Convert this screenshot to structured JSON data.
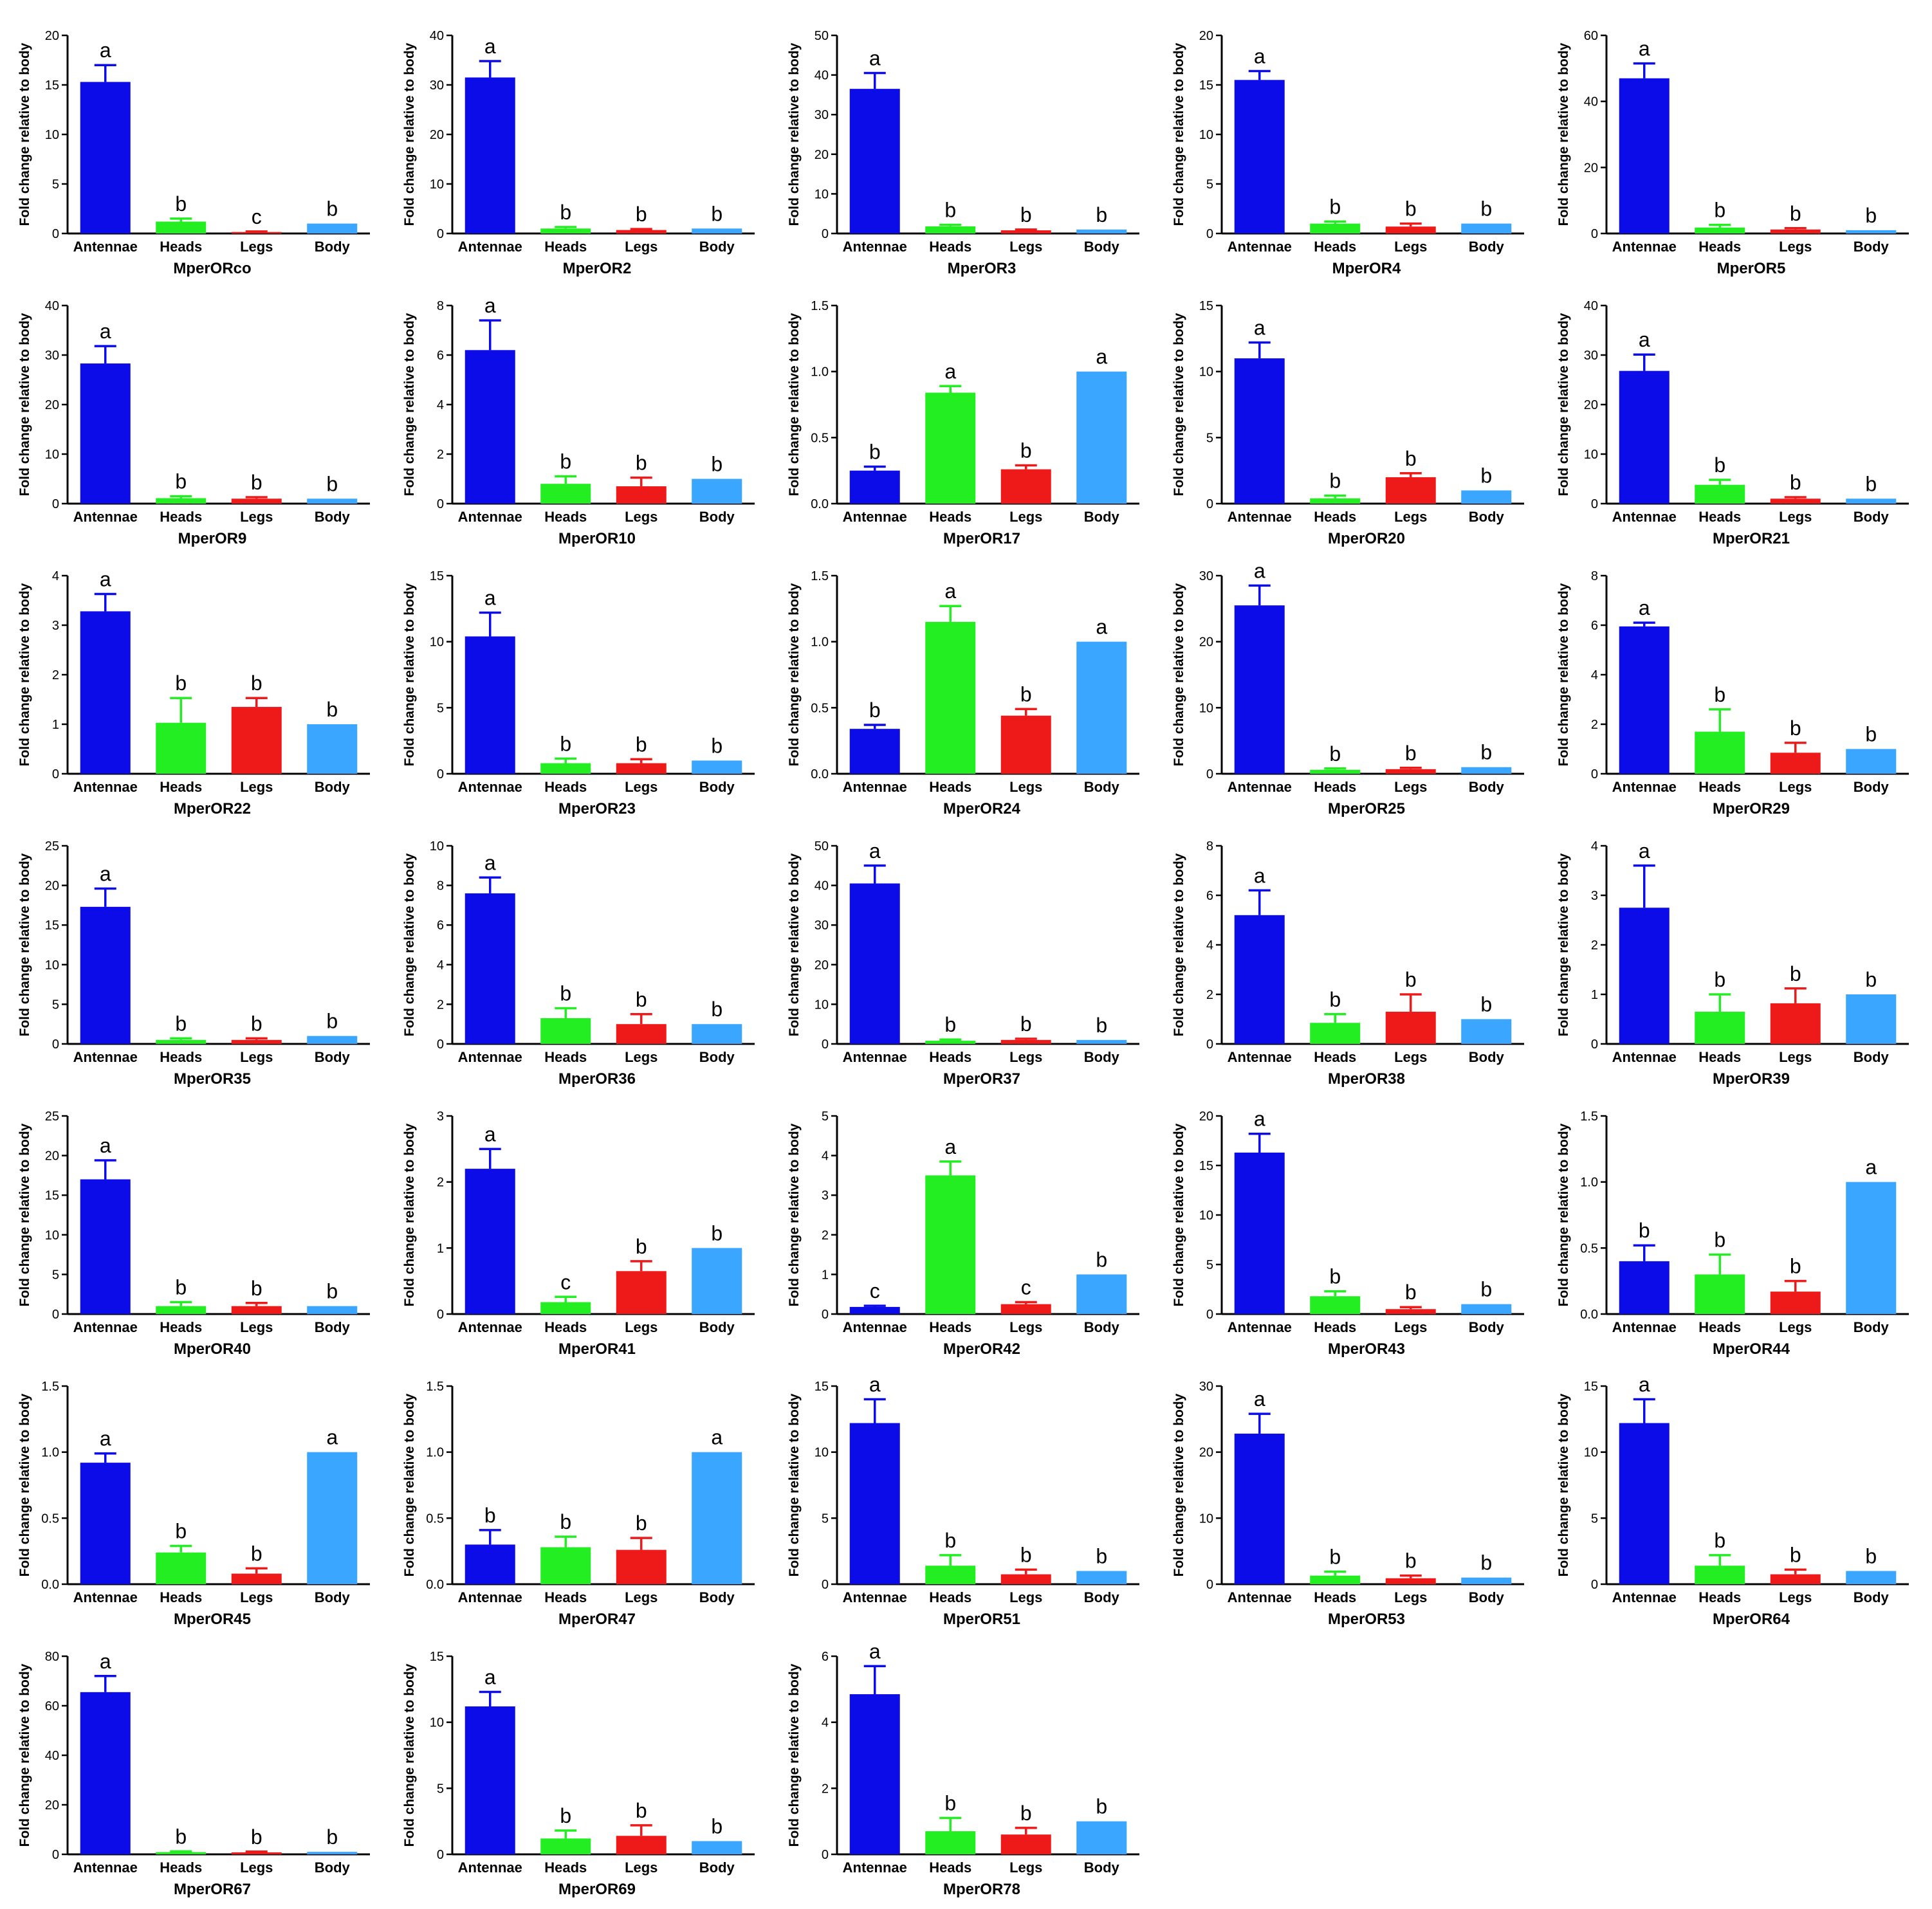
{
  "ylabel": "Fold change relative to body",
  "categories": [
    "Antennae",
    "Heads",
    "Legs",
    "Body"
  ],
  "colors": [
    "#0c0ce8",
    "#22ee22",
    "#ee1a1a",
    "#3aa6ff"
  ],
  "chart_data": [
    {
      "type": "bar",
      "title": "MperORco",
      "ylabel": "Fold change relative to body",
      "categories": [
        "Antennae",
        "Heads",
        "Legs",
        "Body"
      ],
      "ylim": [
        0,
        20
      ],
      "yticks": [
        0,
        5,
        10,
        15,
        20
      ],
      "values": [
        15.3,
        1.2,
        0.15,
        1.0
      ],
      "errors": [
        1.7,
        0.3,
        0.05,
        0
      ],
      "letters": [
        "a",
        "b",
        "c",
        "b"
      ]
    },
    {
      "type": "bar",
      "title": "MperOR2",
      "ylabel": "Fold change relative to body",
      "categories": [
        "Antennae",
        "Heads",
        "Legs",
        "Body"
      ],
      "ylim": [
        0,
        40
      ],
      "yticks": [
        0,
        10,
        20,
        30,
        40
      ],
      "values": [
        31.5,
        1.0,
        0.7,
        1.0
      ],
      "errors": [
        3.3,
        0.3,
        0.2,
        0
      ],
      "letters": [
        "a",
        "b",
        "b",
        "b"
      ]
    },
    {
      "type": "bar",
      "title": "MperOR3",
      "ylabel": "Fold change relative to body",
      "categories": [
        "Antennae",
        "Heads",
        "Legs",
        "Body"
      ],
      "ylim": [
        0,
        50
      ],
      "yticks": [
        0,
        10,
        20,
        30,
        40,
        50
      ],
      "values": [
        36.5,
        1.8,
        0.8,
        1.0
      ],
      "errors": [
        4.0,
        0.4,
        0.2,
        0
      ],
      "letters": [
        "a",
        "b",
        "b",
        "b"
      ]
    },
    {
      "type": "bar",
      "title": "MperOR4",
      "ylabel": "Fold change relative to body",
      "categories": [
        "Antennae",
        "Heads",
        "Legs",
        "Body"
      ],
      "ylim": [
        0,
        20
      ],
      "yticks": [
        0,
        5,
        10,
        15,
        20
      ],
      "values": [
        15.5,
        1.0,
        0.7,
        1.0
      ],
      "errors": [
        0.9,
        0.2,
        0.3,
        0
      ],
      "letters": [
        "a",
        "b",
        "b",
        "b"
      ]
    },
    {
      "type": "bar",
      "title": "MperOR5",
      "ylabel": "Fold change relative to body",
      "categories": [
        "Antennae",
        "Heads",
        "Legs",
        "Body"
      ],
      "ylim": [
        0,
        60
      ],
      "yticks": [
        0,
        20,
        40,
        60
      ],
      "values": [
        47.0,
        1.8,
        1.2,
        1.0
      ],
      "errors": [
        4.5,
        0.8,
        0.4,
        0
      ],
      "letters": [
        "a",
        "b",
        "b",
        "b"
      ]
    },
    {
      "type": "bar",
      "title": "MperOR9",
      "ylabel": "Fold change relative to body",
      "categories": [
        "Antennae",
        "Heads",
        "Legs",
        "Body"
      ],
      "ylim": [
        0,
        40
      ],
      "yticks": [
        0,
        10,
        20,
        30,
        40
      ],
      "values": [
        28.3,
        1.1,
        1.0,
        1.0
      ],
      "errors": [
        3.5,
        0.4,
        0.3,
        0
      ],
      "letters": [
        "a",
        "b",
        "b",
        "b"
      ]
    },
    {
      "type": "bar",
      "title": "MperOR10",
      "ylabel": "Fold change relative to body",
      "categories": [
        "Antennae",
        "Heads",
        "Legs",
        "Body"
      ],
      "ylim": [
        0,
        8
      ],
      "yticks": [
        0,
        2,
        4,
        6,
        8
      ],
      "values": [
        6.2,
        0.8,
        0.7,
        1.0
      ],
      "errors": [
        1.2,
        0.3,
        0.35,
        0
      ],
      "letters": [
        "a",
        "b",
        "b",
        "b"
      ]
    },
    {
      "type": "bar",
      "title": "MperOR17",
      "ylabel": "Fold change relative to body",
      "categories": [
        "Antennae",
        "Heads",
        "Legs",
        "Body"
      ],
      "ylim": [
        0,
        1.5
      ],
      "yticks": [
        0,
        0.5,
        1.0,
        1.5
      ],
      "yticklabels": [
        "0.0",
        "0.5",
        "1.0",
        "1.5"
      ],
      "values": [
        0.25,
        0.84,
        0.26,
        1.0
      ],
      "errors": [
        0.03,
        0.05,
        0.03,
        0
      ],
      "letters": [
        "b",
        "a",
        "b",
        "a"
      ]
    },
    {
      "type": "bar",
      "title": "MperOR20",
      "ylabel": "Fold change relative to body",
      "categories": [
        "Antennae",
        "Heads",
        "Legs",
        "Body"
      ],
      "ylim": [
        0,
        15
      ],
      "yticks": [
        0,
        5,
        10,
        15
      ],
      "values": [
        11.0,
        0.4,
        2.0,
        1.0
      ],
      "errors": [
        1.2,
        0.2,
        0.3,
        0
      ],
      "letters": [
        "a",
        "b",
        "b",
        "b"
      ]
    },
    {
      "type": "bar",
      "title": "MperOR21",
      "ylabel": "Fold change relative to body",
      "categories": [
        "Antennae",
        "Heads",
        "Legs",
        "Body"
      ],
      "ylim": [
        0,
        40
      ],
      "yticks": [
        0,
        10,
        20,
        30,
        40
      ],
      "values": [
        26.8,
        3.8,
        1.0,
        1.0
      ],
      "errors": [
        3.3,
        1.0,
        0.3,
        0
      ],
      "letters": [
        "a",
        "b",
        "b",
        "b"
      ]
    },
    {
      "type": "bar",
      "title": "MperOR22",
      "ylabel": "Fold change relative to body",
      "categories": [
        "Antennae",
        "Heads",
        "Legs",
        "Body"
      ],
      "ylim": [
        0,
        4
      ],
      "yticks": [
        0,
        1,
        2,
        3,
        4
      ],
      "values": [
        3.28,
        1.03,
        1.35,
        1.0
      ],
      "errors": [
        0.35,
        0.5,
        0.18,
        0
      ],
      "letters": [
        "a",
        "b",
        "b",
        "b"
      ]
    },
    {
      "type": "bar",
      "title": "MperOR23",
      "ylabel": "Fold change relative to body",
      "categories": [
        "Antennae",
        "Heads",
        "Legs",
        "Body"
      ],
      "ylim": [
        0,
        15
      ],
      "yticks": [
        0,
        5,
        10,
        15
      ],
      "values": [
        10.4,
        0.8,
        0.8,
        1.0
      ],
      "errors": [
        1.8,
        0.35,
        0.3,
        0
      ],
      "letters": [
        "a",
        "b",
        "b",
        "b"
      ]
    },
    {
      "type": "bar",
      "title": "MperOR24",
      "ylabel": "Fold change relative to body",
      "categories": [
        "Antennae",
        "Heads",
        "Legs",
        "Body"
      ],
      "ylim": [
        0,
        1.5
      ],
      "yticks": [
        0,
        0.5,
        1.0,
        1.5
      ],
      "yticklabels": [
        "0.0",
        "0.5",
        "1.0",
        "1.5"
      ],
      "values": [
        0.34,
        1.15,
        0.44,
        1.0
      ],
      "errors": [
        0.03,
        0.12,
        0.05,
        0
      ],
      "letters": [
        "b",
        "a",
        "b",
        "a"
      ]
    },
    {
      "type": "bar",
      "title": "MperOR25",
      "ylabel": "Fold change relative to body",
      "categories": [
        "Antennae",
        "Heads",
        "Legs",
        "Body"
      ],
      "ylim": [
        0,
        30
      ],
      "yticks": [
        0,
        10,
        20,
        30
      ],
      "values": [
        25.5,
        0.6,
        0.7,
        1.0
      ],
      "errors": [
        3.0,
        0.2,
        0.2,
        0
      ],
      "letters": [
        "a",
        "b",
        "b",
        "b"
      ]
    },
    {
      "type": "bar",
      "title": "MperOR29",
      "ylabel": "Fold change relative to body",
      "categories": [
        "Antennae",
        "Heads",
        "Legs",
        "Body"
      ],
      "ylim": [
        0,
        8
      ],
      "yticks": [
        0,
        2,
        4,
        6,
        8
      ],
      "values": [
        5.95,
        1.7,
        0.85,
        1.0
      ],
      "errors": [
        0.15,
        0.9,
        0.4,
        0
      ],
      "letters": [
        "a",
        "b",
        "b",
        "b"
      ]
    },
    {
      "type": "bar",
      "title": "MperOR35",
      "ylabel": "Fold change relative to body",
      "categories": [
        "Antennae",
        "Heads",
        "Legs",
        "Body"
      ],
      "ylim": [
        0,
        25
      ],
      "yticks": [
        0,
        5,
        10,
        15,
        20,
        25
      ],
      "values": [
        17.3,
        0.5,
        0.5,
        1.0
      ],
      "errors": [
        2.3,
        0.2,
        0.2,
        0
      ],
      "letters": [
        "a",
        "b",
        "b",
        "b"
      ]
    },
    {
      "type": "bar",
      "title": "MperOR36",
      "ylabel": "Fold change relative to body",
      "categories": [
        "Antennae",
        "Heads",
        "Legs",
        "Body"
      ],
      "ylim": [
        0,
        10
      ],
      "yticks": [
        0,
        2,
        4,
        6,
        8,
        10
      ],
      "values": [
        7.6,
        1.3,
        1.0,
        1.0
      ],
      "errors": [
        0.8,
        0.5,
        0.5,
        0
      ],
      "letters": [
        "a",
        "b",
        "b",
        "b"
      ]
    },
    {
      "type": "bar",
      "title": "MperOR37",
      "ylabel": "Fold change relative to body",
      "categories": [
        "Antennae",
        "Heads",
        "Legs",
        "Body"
      ],
      "ylim": [
        0,
        50
      ],
      "yticks": [
        0,
        10,
        20,
        30,
        40,
        50
      ],
      "values": [
        40.5,
        0.8,
        1.0,
        1.0
      ],
      "errors": [
        4.5,
        0.3,
        0.3,
        0
      ],
      "letters": [
        "a",
        "b",
        "b",
        "b"
      ]
    },
    {
      "type": "bar",
      "title": "MperOR38",
      "ylabel": "Fold change relative to body",
      "categories": [
        "Antennae",
        "Heads",
        "Legs",
        "Body"
      ],
      "ylim": [
        0,
        8
      ],
      "yticks": [
        0,
        2,
        4,
        6,
        8
      ],
      "values": [
        5.2,
        0.85,
        1.3,
        1.0
      ],
      "errors": [
        1.0,
        0.35,
        0.7,
        0
      ],
      "letters": [
        "a",
        "b",
        "b",
        "b"
      ]
    },
    {
      "type": "bar",
      "title": "MperOR39",
      "ylabel": "Fold change relative to body",
      "categories": [
        "Antennae",
        "Heads",
        "Legs",
        "Body"
      ],
      "ylim": [
        0,
        4
      ],
      "yticks": [
        0,
        1,
        2,
        3,
        4
      ],
      "values": [
        2.75,
        0.65,
        0.82,
        1.0
      ],
      "errors": [
        0.85,
        0.35,
        0.3,
        0
      ],
      "letters": [
        "a",
        "b",
        "b",
        "b"
      ]
    },
    {
      "type": "bar",
      "title": "MperOR40",
      "ylabel": "Fold change relative to body",
      "categories": [
        "Antennae",
        "Heads",
        "Legs",
        "Body"
      ],
      "ylim": [
        0,
        25
      ],
      "yticks": [
        0,
        5,
        10,
        15,
        20,
        25
      ],
      "values": [
        17.0,
        1.0,
        1.0,
        1.0
      ],
      "errors": [
        2.4,
        0.5,
        0.4,
        0
      ],
      "letters": [
        "a",
        "b",
        "b",
        "b"
      ]
    },
    {
      "type": "bar",
      "title": "MperOR41",
      "ylabel": "Fold change relative to body",
      "categories": [
        "Antennae",
        "Heads",
        "Legs",
        "Body"
      ],
      "ylim": [
        0,
        3
      ],
      "yticks": [
        0,
        1,
        2,
        3
      ],
      "values": [
        2.2,
        0.18,
        0.65,
        1.0
      ],
      "errors": [
        0.3,
        0.08,
        0.15,
        0
      ],
      "letters": [
        "a",
        "c",
        "b",
        "b"
      ]
    },
    {
      "type": "bar",
      "title": "MperOR42",
      "ylabel": "Fold change relative to body",
      "categories": [
        "Antennae",
        "Heads",
        "Legs",
        "Body"
      ],
      "ylim": [
        0,
        5
      ],
      "yticks": [
        0,
        1,
        2,
        3,
        4,
        5
      ],
      "values": [
        0.18,
        3.5,
        0.25,
        1.0
      ],
      "errors": [
        0.03,
        0.35,
        0.05,
        0
      ],
      "letters": [
        "c",
        "a",
        "c",
        "b"
      ]
    },
    {
      "type": "bar",
      "title": "MperOR43",
      "ylabel": "Fold change relative to body",
      "categories": [
        "Antennae",
        "Heads",
        "Legs",
        "Body"
      ],
      "ylim": [
        0,
        20
      ],
      "yticks": [
        0,
        5,
        10,
        15,
        20
      ],
      "values": [
        16.3,
        1.8,
        0.5,
        1.0
      ],
      "errors": [
        1.9,
        0.5,
        0.2,
        0
      ],
      "letters": [
        "a",
        "b",
        "b",
        "b"
      ]
    },
    {
      "type": "bar",
      "title": "MperOR44",
      "ylabel": "Fold change relative to body",
      "categories": [
        "Antennae",
        "Heads",
        "Legs",
        "Body"
      ],
      "ylim": [
        0,
        1.5
      ],
      "yticks": [
        0,
        0.5,
        1.0,
        1.5
      ],
      "yticklabels": [
        "0.0",
        "0.5",
        "1.0",
        "1.5"
      ],
      "values": [
        0.4,
        0.3,
        0.17,
        1.0
      ],
      "errors": [
        0.12,
        0.15,
        0.08,
        0
      ],
      "letters": [
        "b",
        "b",
        "b",
        "a"
      ]
    },
    {
      "type": "bar",
      "title": "MperOR45",
      "ylabel": "Fold change relative to body",
      "categories": [
        "Antennae",
        "Heads",
        "Legs",
        "Body"
      ],
      "ylim": [
        0,
        1.5
      ],
      "yticks": [
        0,
        0.5,
        1.0,
        1.5
      ],
      "yticklabels": [
        "0.0",
        "0.5",
        "1.0",
        "1.5"
      ],
      "values": [
        0.92,
        0.24,
        0.08,
        1.0
      ],
      "errors": [
        0.07,
        0.05,
        0.04,
        0
      ],
      "letters": [
        "a",
        "b",
        "b",
        "a"
      ]
    },
    {
      "type": "bar",
      "title": "MperOR47",
      "ylabel": "Fold change relative to body",
      "categories": [
        "Antennae",
        "Heads",
        "Legs",
        "Body"
      ],
      "ylim": [
        0,
        1.5
      ],
      "yticks": [
        0,
        0.5,
        1.0,
        1.5
      ],
      "yticklabels": [
        "0.0",
        "0.5",
        "1.0",
        "1.5"
      ],
      "values": [
        0.3,
        0.28,
        0.26,
        1.0
      ],
      "errors": [
        0.11,
        0.08,
        0.09,
        0
      ],
      "letters": [
        "b",
        "b",
        "b",
        "a"
      ]
    },
    {
      "type": "bar",
      "title": "MperOR51",
      "ylabel": "Fold change relative to body",
      "categories": [
        "Antennae",
        "Heads",
        "Legs",
        "Body"
      ],
      "ylim": [
        0,
        15
      ],
      "yticks": [
        0,
        5,
        10,
        15
      ],
      "values": [
        12.2,
        1.4,
        0.75,
        1.0
      ],
      "errors": [
        1.8,
        0.8,
        0.35,
        0
      ],
      "letters": [
        "a",
        "b",
        "b",
        "b"
      ]
    },
    {
      "type": "bar",
      "title": "MperOR53",
      "ylabel": "Fold change relative to body",
      "categories": [
        "Antennae",
        "Heads",
        "Legs",
        "Body"
      ],
      "ylim": [
        0,
        30
      ],
      "yticks": [
        0,
        10,
        20,
        30
      ],
      "values": [
        22.8,
        1.3,
        0.9,
        1.0
      ],
      "errors": [
        3.0,
        0.6,
        0.4,
        0
      ],
      "letters": [
        "a",
        "b",
        "b",
        "b"
      ]
    },
    {
      "type": "bar",
      "title": "MperOR64",
      "ylabel": "Fold change relative to body",
      "categories": [
        "Antennae",
        "Heads",
        "Legs",
        "Body"
      ],
      "ylim": [
        0,
        15
      ],
      "yticks": [
        0,
        5,
        10,
        15
      ],
      "values": [
        12.2,
        1.4,
        0.75,
        1.0
      ],
      "errors": [
        1.8,
        0.8,
        0.35,
        0
      ],
      "letters": [
        "a",
        "b",
        "b",
        "b"
      ]
    },
    {
      "type": "bar",
      "title": "MperOR67",
      "ylabel": "Fold change relative to body",
      "categories": [
        "Antennae",
        "Heads",
        "Legs",
        "Body"
      ],
      "ylim": [
        0,
        80
      ],
      "yticks": [
        0,
        20,
        40,
        60,
        80
      ],
      "values": [
        65.5,
        0.9,
        0.8,
        1.0
      ],
      "errors": [
        6.5,
        0.3,
        0.3,
        0
      ],
      "letters": [
        "a",
        "b",
        "b",
        "b"
      ]
    },
    {
      "type": "bar",
      "title": "MperOR69",
      "ylabel": "Fold change relative to body",
      "categories": [
        "Antennae",
        "Heads",
        "Legs",
        "Body"
      ],
      "ylim": [
        0,
        15
      ],
      "yticks": [
        0,
        5,
        10,
        15
      ],
      "values": [
        11.2,
        1.2,
        1.4,
        1.0
      ],
      "errors": [
        1.1,
        0.6,
        0.8,
        0
      ],
      "letters": [
        "a",
        "b",
        "b",
        "b"
      ]
    },
    {
      "type": "bar",
      "title": "MperOR78",
      "ylabel": "Fold change relative to body",
      "categories": [
        "Antennae",
        "Heads",
        "Legs",
        "Body"
      ],
      "ylim": [
        0,
        6
      ],
      "yticks": [
        0,
        2,
        4,
        6
      ],
      "values": [
        4.85,
        0.7,
        0.6,
        1.0
      ],
      "errors": [
        0.85,
        0.4,
        0.2,
        0
      ],
      "letters": [
        "a",
        "b",
        "b",
        "b"
      ]
    }
  ]
}
